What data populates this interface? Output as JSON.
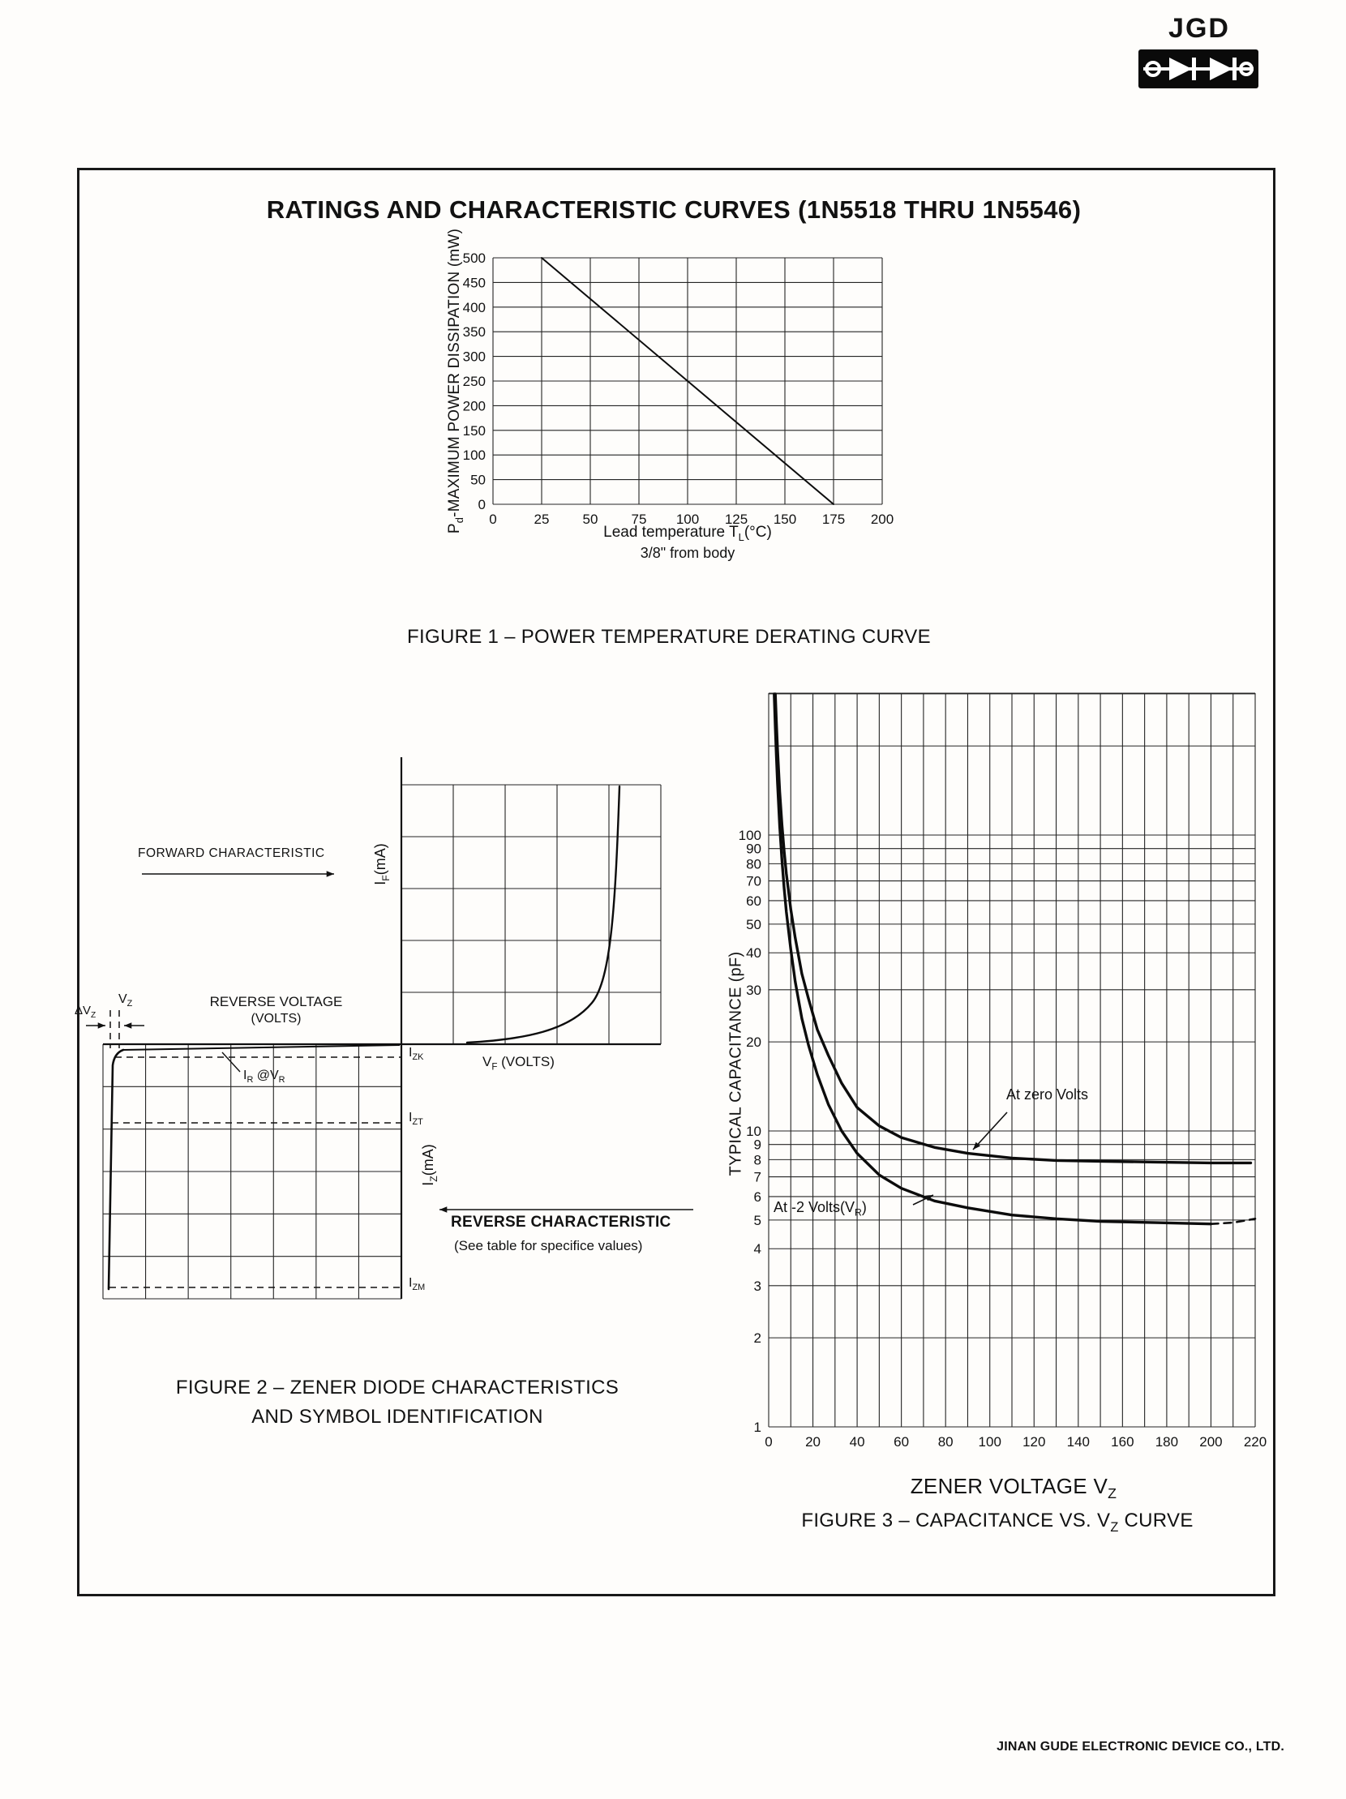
{
  "logo": {
    "text": "JGD"
  },
  "page": {
    "title": "RATINGS AND CHARACTERISTIC CURVES (1N5518 THRU 1N5546)",
    "footer": "JINAN GUDE ELECTRONIC DEVICE CO., LTD."
  },
  "figure1": {
    "ylabel": {
      "p1": "P",
      "s1": "d",
      "p2": "-MAXIMUM POWER DISSIPATION (mW)"
    },
    "xlabel": {
      "p1": "Lead temperature T",
      "s1": "L",
      "p2": "(°C)"
    },
    "xlabel_line2": "3/8\" from body",
    "caption": "FIGURE 1 – POWER TEMPERATURE DERATING CURVE"
  },
  "figure2": {
    "caption_line1": "FIGURE 2 – ZENER DIODE CHARACTERISTICS",
    "caption_line2": "AND SYMBOL IDENTIFICATION",
    "labels": {
      "forward_characteristic": "FORWARD CHARACTERISTIC",
      "reverse_voltage_line1": "REVERSE VOLTAGE",
      "reverse_voltage_line2": "(VOLTS)",
      "reverse_characteristic": "REVERSE CHARACTERISTIC",
      "reverse_note": "(See table for specifice values)",
      "vz": {
        "p1": "V",
        "s1": "Z"
      },
      "delta_vz": {
        "p1": "ΔV",
        "s1": "Z"
      },
      "ir_at_vr": {
        "p1": "I",
        "s1": "R",
        "p2": " @V",
        "s2": "R"
      },
      "izk": {
        "p1": "I",
        "s1": "ZK"
      },
      "izt": {
        "p1": "I",
        "s1": "ZT"
      },
      "izm": {
        "p1": "I",
        "s1": "ZM"
      },
      "if_axis": {
        "p1": "I",
        "s1": "F",
        "p2": "(mA)"
      },
      "iz_axis": {
        "p1": "I",
        "s1": "Z",
        "p2": "(mA)"
      },
      "vf_axis": {
        "p1": "V",
        "s1": "F",
        "p2": " (VOLTS)"
      }
    }
  },
  "figure3": {
    "ylabel": "TYPICAL CAPACITANCE (pF)",
    "x_title": {
      "p1": "ZENER VOLTAGE V",
      "s1": "Z"
    },
    "caption": {
      "p1": "FIGURE 3 – CAPACITANCE VS. V",
      "s1": "Z",
      "p2": " CURVE"
    }
  },
  "chart_data": [
    {
      "figure": "Figure 1",
      "type": "line",
      "title": "FIGURE 1 – POWER TEMPERATURE DERATING CURVE",
      "xlabel": "Lead temperature TL(°C), 3/8\" from body",
      "ylabel": "Pd-MAXIMUM POWER DISSIPATION (mW)",
      "xlim": [
        0,
        200
      ],
      "ylim": [
        0,
        500
      ],
      "xticks": [
        0,
        25,
        50,
        75,
        100,
        125,
        150,
        175,
        200
      ],
      "yticks": [
        0,
        50,
        100,
        150,
        200,
        250,
        300,
        350,
        400,
        450,
        500
      ],
      "grid": "on",
      "series": [
        {
          "name": "maximum power dissipation derating",
          "points": [
            [
              25,
              500
            ],
            [
              175,
              0
            ]
          ]
        }
      ]
    },
    {
      "figure": "Figure 2",
      "type": "diagram",
      "title": "ZENER DIODE CHARACTERISTICS AND SYMBOL IDENTIFICATION",
      "quadrants": {
        "forward": "IF(mA) vs VF(VOLTS): exponential forward-conduction curve in upper-right 5x5 grid",
        "reverse": "IZ(mA) vs REVERSE VOLTAGE (VOLTS): sharp zener breakdown at VZ in lower-left 7x6 grid"
      },
      "marked_current_levels": [
        "IZK",
        "IZT",
        "IZM"
      ],
      "marked_voltages": [
        "VZ",
        "ΔVZ"
      ],
      "leakage_label": "IR @VR"
    },
    {
      "figure": "Figure 3",
      "type": "line",
      "title": "FIGURE 3 – CAPACITANCE VS. Vz CURVE",
      "xlabel": "ZENER VOLTAGE Vz",
      "ylabel": "TYPICAL CAPACITANCE (pF)",
      "xlim": [
        0,
        220
      ],
      "x_grid_step": 10,
      "xticks": [
        0,
        20,
        40,
        60,
        80,
        100,
        120,
        140,
        160,
        180,
        200,
        220
      ],
      "yscale": "log",
      "ylim": [
        1,
        300
      ],
      "yticks": [
        100,
        90,
        80,
        70,
        60,
        50,
        40,
        30,
        20,
        10,
        9,
        8,
        7,
        6,
        5,
        4,
        3,
        2,
        1
      ],
      "grid": "on",
      "series": [
        {
          "name": "At zero Volts",
          "label": {
            "p1": "At zero Volts"
          },
          "points": [
            [
              3,
              300
            ],
            [
              3.5,
              240
            ],
            [
              4,
              195
            ],
            [
              5,
              140
            ],
            [
              6,
              108
            ],
            [
              7,
              88
            ],
            [
              8,
              74
            ],
            [
              10,
              56
            ],
            [
              12,
              45
            ],
            [
              15,
              34
            ],
            [
              18,
              28
            ],
            [
              22,
              22
            ],
            [
              27,
              18
            ],
            [
              33,
              14.5
            ],
            [
              40,
              12
            ],
            [
              50,
              10.4
            ],
            [
              60,
              9.5
            ],
            [
              75,
              8.8
            ],
            [
              90,
              8.4
            ],
            [
              110,
              8.1
            ],
            [
              130,
              7.95
            ],
            [
              150,
              7.9
            ],
            [
              175,
              7.85
            ],
            [
              200,
              7.8
            ],
            [
              218,
              7.8
            ]
          ]
        },
        {
          "name": "At -2 Volts(VR)",
          "label": {
            "p1": "At -2 Volts(V",
            "s1": "R",
            "p2": ")"
          },
          "points": [
            [
              2.5,
              300
            ],
            [
              3,
              230
            ],
            [
              3.5,
              185
            ],
            [
              4,
              150
            ],
            [
              5,
              107
            ],
            [
              6,
              82
            ],
            [
              7,
              66
            ],
            [
              8,
              55
            ],
            [
              10,
              41
            ],
            [
              12,
              32
            ],
            [
              15,
              24
            ],
            [
              18,
              19.5
            ],
            [
              22,
              15.5
            ],
            [
              27,
              12.3
            ],
            [
              33,
              10
            ],
            [
              40,
              8.4
            ],
            [
              50,
              7.1
            ],
            [
              60,
              6.4
            ],
            [
              75,
              5.8
            ],
            [
              90,
              5.5
            ],
            [
              110,
              5.2
            ],
            [
              130,
              5.05
            ],
            [
              150,
              4.95
            ],
            [
              175,
              4.9
            ],
            [
              200,
              4.85
            ]
          ],
          "dashed_tail": [
            [
              200,
              4.85
            ],
            [
              210,
              4.9
            ],
            [
              220,
              5.05
            ]
          ]
        }
      ]
    }
  ]
}
